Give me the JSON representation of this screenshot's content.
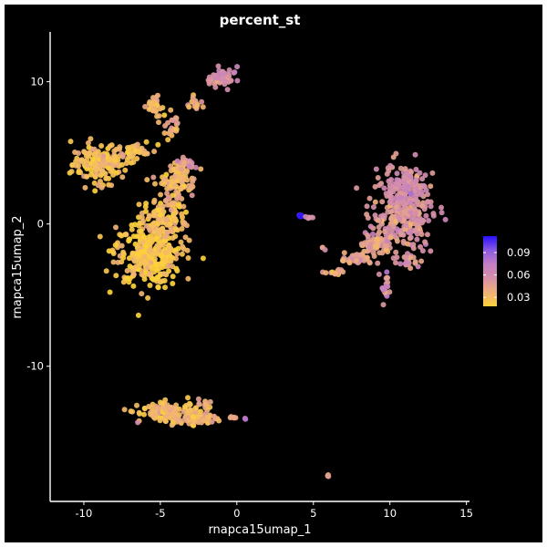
{
  "chart_data": {
    "type": "scatter",
    "title": "percent_st",
    "xlabel": "rnapca15umap_1",
    "ylabel": "rnapca15umap_2",
    "xlim": [
      -12.2,
      15.2
    ],
    "ylim": [
      -19.5,
      13.5
    ],
    "x_ticks": [
      -10,
      -5,
      0,
      5,
      10,
      15
    ],
    "y_ticks": [
      -10,
      0,
      10
    ],
    "x_tick_labels": [
      "-10",
      "-5",
      "0",
      "5",
      "10",
      "15"
    ],
    "y_tick_labels": [
      "-10",
      "0",
      "10"
    ],
    "grid": false,
    "background": "#000000",
    "legend": {
      "placement": "right",
      "min": 0.018,
      "max": 0.112,
      "ticks": [
        0.03,
        0.06,
        0.09
      ],
      "tick_labels": [
        "0.03",
        "0.06",
        "0.09"
      ],
      "colors": [
        "#fdd13a",
        "#f0b07a",
        "#d690a8",
        "#c47ec6",
        "#8a5ae0",
        "#2a10ff"
      ]
    },
    "clusters": [
      {
        "cx": -9.0,
        "cy": 4.2,
        "rx": 1.6,
        "ry": 1.3,
        "n": 150,
        "value": 0.028
      },
      {
        "cx": -6.5,
        "cy": 5.0,
        "rx": 1.2,
        "ry": 0.6,
        "n": 40,
        "value": 0.03
      },
      {
        "cx": -5.8,
        "cy": -2.0,
        "rx": 2.0,
        "ry": 2.0,
        "n": 320,
        "value": 0.022
      },
      {
        "cx": -4.8,
        "cy": 0.5,
        "rx": 1.3,
        "ry": 1.2,
        "n": 110,
        "value": 0.028
      },
      {
        "cx": -3.8,
        "cy": 3.0,
        "rx": 1.0,
        "ry": 1.3,
        "n": 100,
        "value": 0.033
      },
      {
        "cx": -3.4,
        "cy": 4.2,
        "rx": 0.5,
        "ry": 0.4,
        "n": 25,
        "value": 0.05
      },
      {
        "cx": -5.4,
        "cy": 8.2,
        "rx": 0.5,
        "ry": 0.8,
        "n": 30,
        "value": 0.035
      },
      {
        "cx": -4.2,
        "cy": 6.8,
        "rx": 0.4,
        "ry": 0.8,
        "n": 20,
        "value": 0.035
      },
      {
        "cx": -2.8,
        "cy": 8.5,
        "rx": 0.4,
        "ry": 0.7,
        "n": 15,
        "value": 0.04
      },
      {
        "cx": -1.4,
        "cy": 10.0,
        "rx": 0.5,
        "ry": 0.3,
        "n": 12,
        "value": 0.048
      },
      {
        "cx": -0.7,
        "cy": 10.3,
        "rx": 0.8,
        "ry": 0.6,
        "n": 40,
        "value": 0.058
      },
      {
        "cx": 10.8,
        "cy": 0.7,
        "rx": 1.8,
        "ry": 2.6,
        "n": 280,
        "value": 0.052
      },
      {
        "cx": 11.3,
        "cy": 2.8,
        "rx": 1.1,
        "ry": 1.1,
        "n": 60,
        "value": 0.06
      },
      {
        "cx": 9.0,
        "cy": -1.4,
        "rx": 0.9,
        "ry": 0.9,
        "n": 60,
        "value": 0.046
      },
      {
        "cx": 7.8,
        "cy": -2.5,
        "rx": 1.0,
        "ry": 0.4,
        "n": 35,
        "value": 0.046
      },
      {
        "cx": 6.4,
        "cy": -3.4,
        "rx": 0.6,
        "ry": 0.2,
        "n": 15,
        "value": 0.04
      },
      {
        "cx": 9.7,
        "cy": -4.3,
        "rx": 0.3,
        "ry": 0.9,
        "n": 18,
        "value": 0.062
      },
      {
        "cx": 11.3,
        "cy": -2.6,
        "rx": 0.5,
        "ry": 0.4,
        "n": 15,
        "value": 0.052
      },
      {
        "cx": -4.4,
        "cy": -13.3,
        "rx": 1.8,
        "ry": 0.6,
        "n": 130,
        "value": 0.03
      },
      {
        "cx": -2.3,
        "cy": -13.7,
        "rx": 1.2,
        "ry": 0.4,
        "n": 50,
        "value": 0.035
      },
      {
        "cx": -2.2,
        "cy": -12.6,
        "rx": 0.5,
        "ry": 0.3,
        "n": 10,
        "value": 0.04
      },
      {
        "cx": -0.4,
        "cy": -13.6,
        "rx": 0.3,
        "ry": 0.1,
        "n": 5,
        "value": 0.033
      },
      {
        "cx": 0.5,
        "cy": -13.7,
        "rx": 0.1,
        "ry": 0.1,
        "n": 2,
        "value": 0.065
      },
      {
        "cx": 4.1,
        "cy": 0.6,
        "rx": 0.2,
        "ry": 0.1,
        "n": 6,
        "value": 0.11
      },
      {
        "cx": 4.8,
        "cy": 0.5,
        "rx": 0.3,
        "ry": 0.1,
        "n": 5,
        "value": 0.06
      },
      {
        "cx": 5.5,
        "cy": -1.7,
        "rx": 0.2,
        "ry": 0.1,
        "n": 3,
        "value": 0.04
      },
      {
        "cx": 6.0,
        "cy": -17.7,
        "rx": 0.15,
        "ry": 0.1,
        "n": 3,
        "value": 0.04
      }
    ]
  }
}
